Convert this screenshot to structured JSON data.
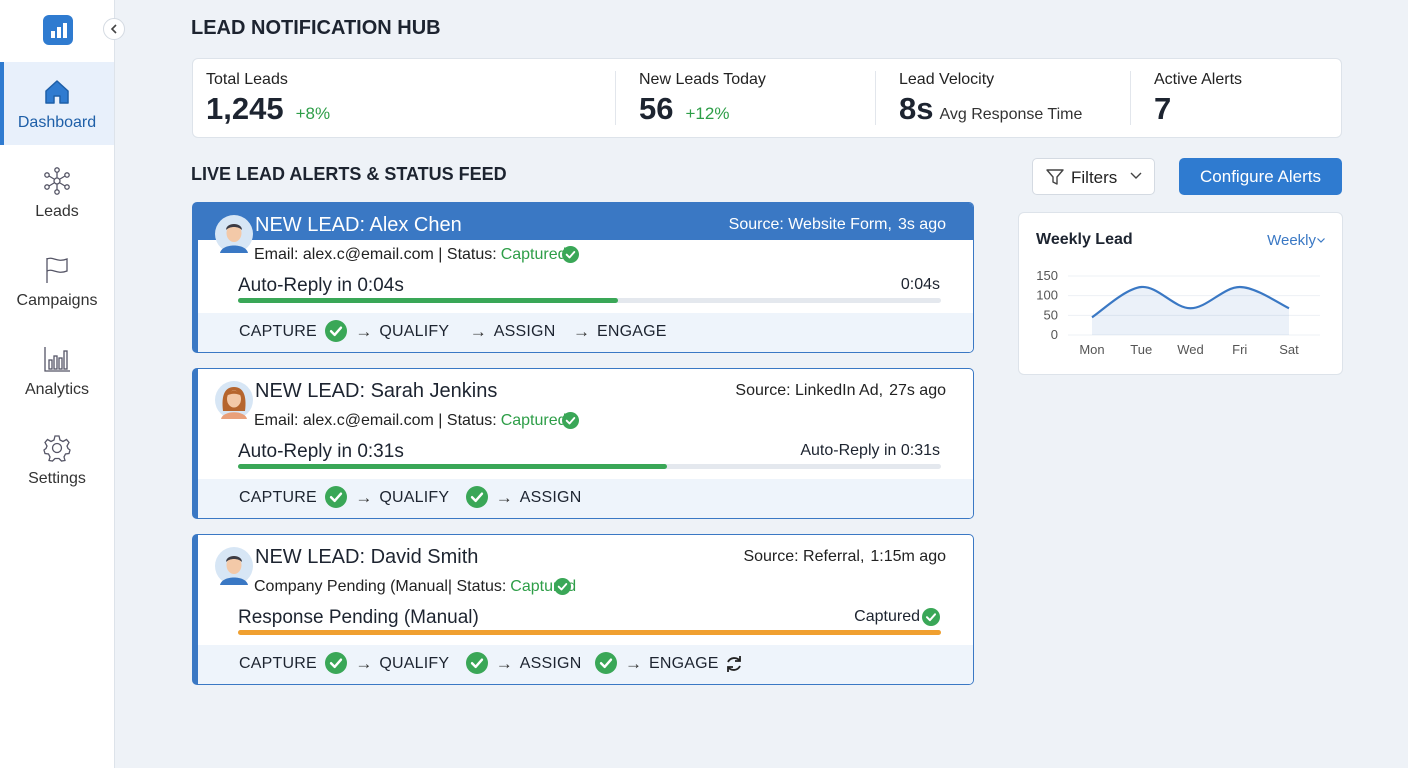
{
  "sidebar": {
    "nav": [
      "Dashboard",
      "Leads",
      "Campaigns",
      "Analytics",
      "Settings"
    ],
    "active": 0
  },
  "header": {
    "title": "LEAD NOTIFICATION HUB"
  },
  "stats": [
    {
      "label": "Total Leads",
      "value": "1,245",
      "change": "+8%"
    },
    {
      "label": "New Leads Today",
      "value": "56",
      "change": "+12%"
    },
    {
      "label": "Lead Velocity",
      "value": "8s",
      "note": "Avg Response Time"
    },
    {
      "label": "Active Alerts",
      "value": "7"
    }
  ],
  "toolbar": {
    "filters": "Filters",
    "configure": "Configure Alerts"
  },
  "feed": {
    "title": "LIVE LEAD ALERTS & STATUS FEED",
    "alerts": [
      {
        "name": "NEW LEAD: Alex Chen",
        "source": "Source: Website Form,",
        "time": "3s ago",
        "detail": "Email: alex.c@email.com | Status:",
        "status": "Captured",
        "timer": "Auto-Reply in 0:04s",
        "right": "0:04s",
        "progress": 54,
        "bar_color": "#3aa757",
        "highlight": true,
        "avatar": "man",
        "steps": [
          {
            "label": "CAPTURE",
            "state": "done"
          },
          {
            "label": "QUALIFY",
            "state": "none"
          },
          {
            "label": "ASSIGN",
            "state": "none"
          },
          {
            "label": "ENGAGE",
            "state": "none"
          }
        ]
      },
      {
        "name": "NEW LEAD: Sarah Jenkins",
        "source": "Source: LinkedIn Ad,",
        "time": "27s ago",
        "detail": "Email: alex.c@email.com | Status:",
        "status": "Captured",
        "timer": "Auto-Reply in 0:31s",
        "right": "Auto-Reply in 0:31s",
        "progress": 61,
        "bar_color": "#3aa757",
        "highlight": false,
        "avatar": "woman",
        "steps": [
          {
            "label": "CAPTURE",
            "state": "done"
          },
          {
            "label": "QUALIFY",
            "state": "done"
          },
          {
            "label": "ASSIGN",
            "state": "none"
          }
        ]
      },
      {
        "name": "NEW LEAD: David Smith",
        "source": "Source: Referral,",
        "time": "1:15m ago",
        "detail": "Company Pending (Manual| Status:",
        "status": "Captured",
        "timer": "Response Pending (Manual)",
        "right": "Captured",
        "right_check": true,
        "progress": 100,
        "bar_color": "#f0a030",
        "highlight": false,
        "avatar": "man",
        "steps": [
          {
            "label": "CAPTURE",
            "state": "done"
          },
          {
            "label": "QUALIFY",
            "state": "done"
          },
          {
            "label": "ASSIGN",
            "state": "done"
          },
          {
            "label": "ENGAGE",
            "state": "sync"
          }
        ]
      }
    ]
  },
  "chart_widget": {
    "period": "Weekly"
  },
  "chart_data": {
    "type": "line",
    "title": "Weekly Lead",
    "categories": [
      "Mon",
      "Tue",
      "Wed",
      "Fri",
      "Sat"
    ],
    "series": [
      {
        "name": "Leads",
        "color": "#3a78c4",
        "values": [
          45,
          122,
          68,
          122,
          68
        ]
      }
    ],
    "ylim": [
      0,
      150
    ],
    "yticks": [
      0,
      50,
      100,
      150
    ],
    "grid": true
  }
}
